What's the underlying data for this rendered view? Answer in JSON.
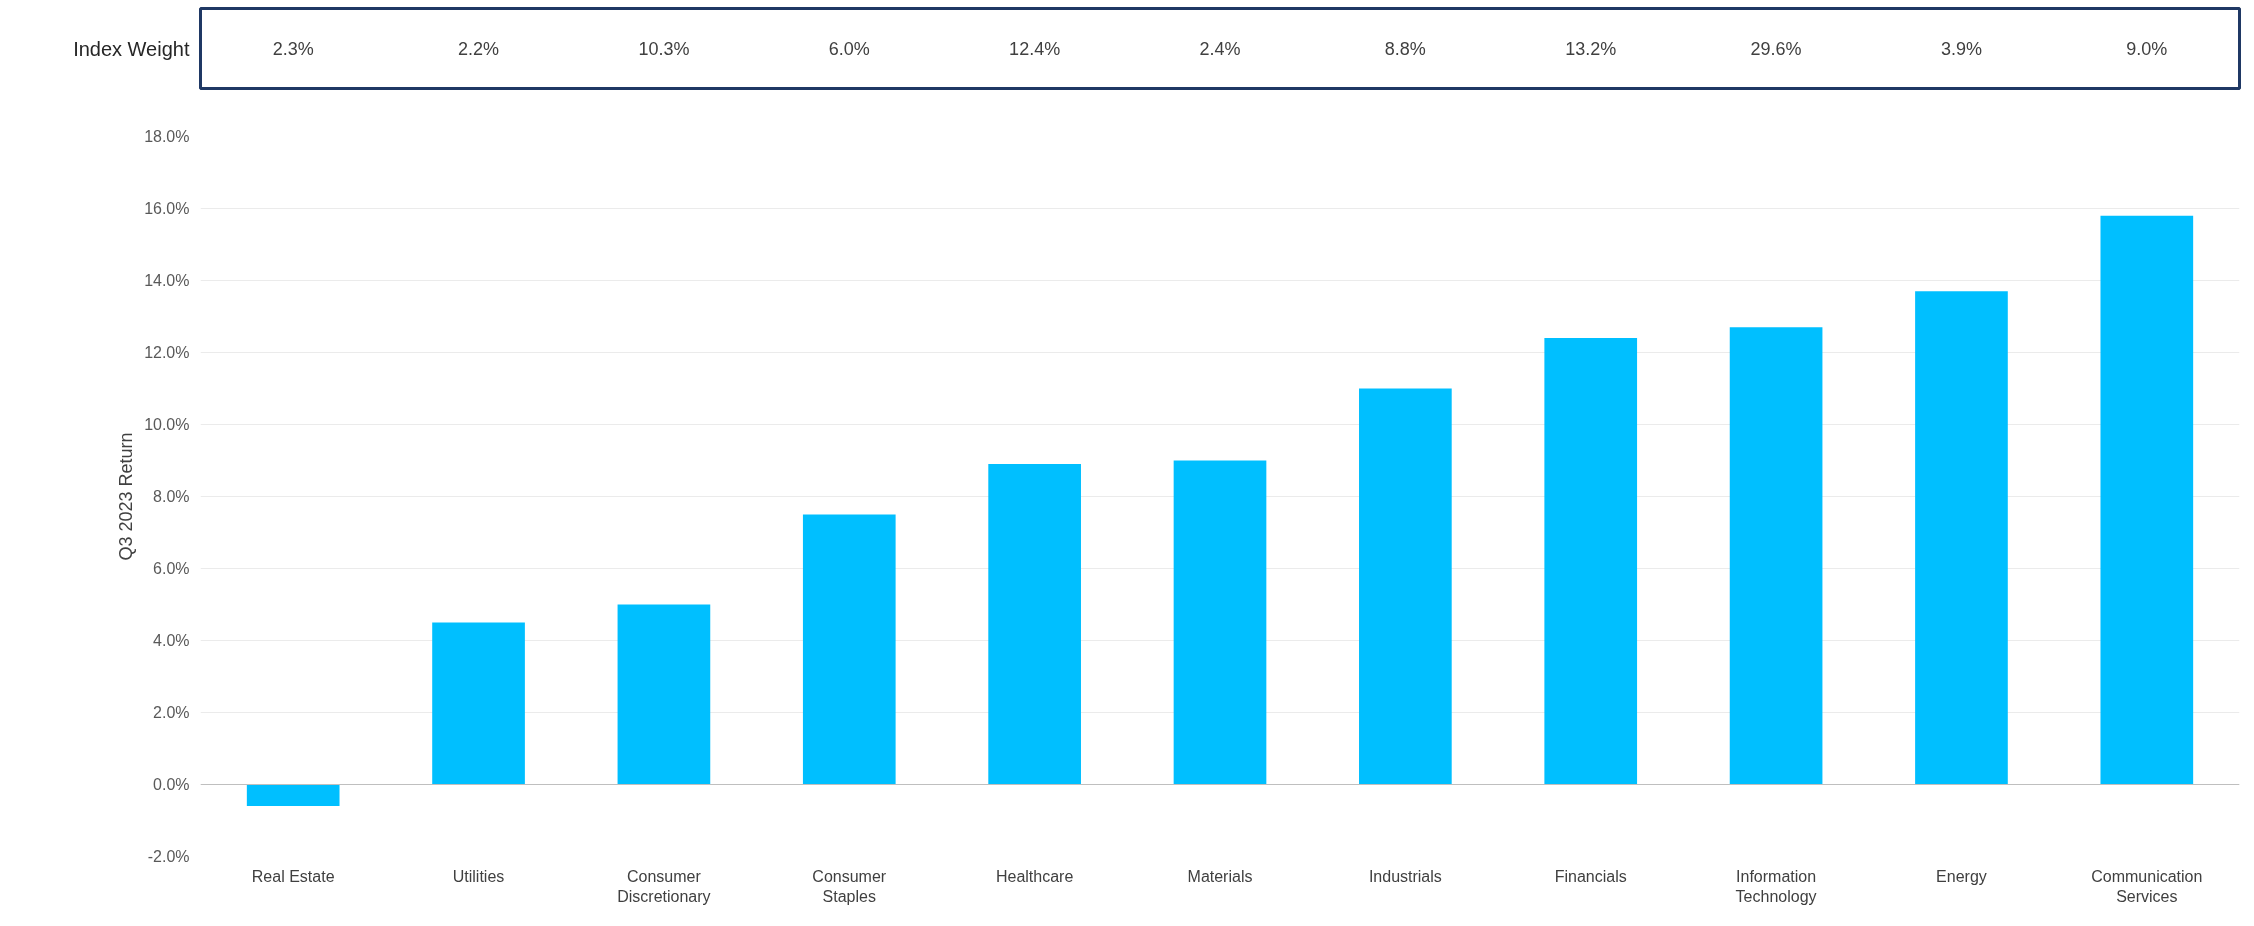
{
  "chart_data": {
    "type": "bar",
    "ylabel": "Q3 2023 Return",
    "categories": [
      "Real Estate",
      "Utilities",
      "Consumer Discretionary",
      "Consumer Staples",
      "Healthcare",
      "Materials",
      "Industrials",
      "Financials",
      "Information Technology",
      "Energy",
      "Communication Services"
    ],
    "values": [
      -0.6,
      4.5,
      5.0,
      7.5,
      8.9,
      9.0,
      11.0,
      12.4,
      12.7,
      13.7,
      15.8
    ],
    "color": "#00bfff",
    "ylim": [
      -2,
      18
    ],
    "yticks": [
      {
        "value": -2,
        "label": "-2.0%"
      },
      {
        "value": 0,
        "label": "0.0%"
      },
      {
        "value": 2,
        "label": "2.0%"
      },
      {
        "value": 4,
        "label": "4.0%"
      },
      {
        "value": 6,
        "label": "6.0%"
      },
      {
        "value": 8,
        "label": "8.0%"
      },
      {
        "value": 10,
        "label": "10.0%"
      },
      {
        "value": 12,
        "label": "12.0%"
      },
      {
        "value": 14,
        "label": "14.0%"
      },
      {
        "value": 16,
        "label": "16.0%"
      },
      {
        "value": 18,
        "label": "18.0%"
      }
    ],
    "grid": "y",
    "annotations": [
      "Index Weight",
      "2.3%",
      "2.2%",
      "10.3%",
      "6.0%",
      "12.4%",
      "2.4%",
      "8.8%",
      "13.2%",
      "29.6%",
      "3.9%",
      "9.0%"
    ]
  }
}
